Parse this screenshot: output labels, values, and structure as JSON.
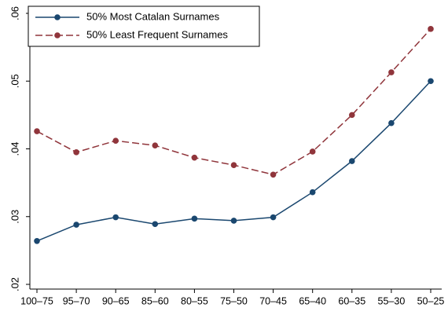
{
  "chart_data": {
    "type": "line",
    "categories": [
      "100–75",
      "95–70",
      "90–65",
      "85–60",
      "80–55",
      "75–50",
      "70–45",
      "65–40",
      "60–35",
      "55–30",
      "50–25"
    ],
    "series": [
      {
        "name": "50% Most Catalan Surnames",
        "color": "#1a476f",
        "dash": false,
        "values": [
          0.0264,
          0.0288,
          0.0299,
          0.0289,
          0.0297,
          0.0294,
          0.0299,
          0.0336,
          0.0382,
          0.0438,
          0.05
        ]
      },
      {
        "name": "50% Least Frequent Surnames",
        "color": "#90353b",
        "dash": true,
        "values": [
          0.0426,
          0.0395,
          0.0412,
          0.0405,
          0.0387,
          0.0376,
          0.0362,
          0.0396,
          0.045,
          0.0513,
          0.0577
        ]
      }
    ],
    "ylim": [
      0.02,
      0.06
    ],
    "yticks": [
      {
        "value": 0.02,
        "label": ".02"
      },
      {
        "value": 0.03,
        "label": ".03"
      },
      {
        "value": 0.04,
        "label": ".04"
      },
      {
        "value": 0.05,
        "label": ".05"
      },
      {
        "value": 0.06,
        "label": ".06"
      }
    ],
    "grid": false,
    "legend": "top-left"
  }
}
